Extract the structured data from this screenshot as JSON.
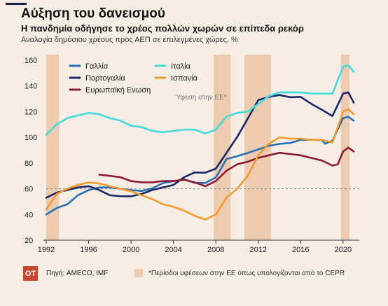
{
  "header": {
    "title": "Αύξηση του δανεισμού",
    "subtitle": "Η πανδημία οδήγησε το χρέος πολλών χωρών σε επίπεδα ρεκόρ",
    "units": "Αναλογία δημόσιου χρέους προς ΑΕΠ σε επιλεγμένες χώρες, %"
  },
  "footer": {
    "logo_text": "OT",
    "source": "Πηγή: AMECO, IMF",
    "recession_note": "*Περίοδοι υφέσεων στην ΕΕ όπως υπολογίζονται από το CEPR"
  },
  "colors": {
    "background": "#f6ede4",
    "recession": "#eccbb0",
    "logo": "#c64a2f",
    "reference_line": "#8a8a8a"
  },
  "chart_data": {
    "type": "line",
    "x_range": [
      1992,
      2021
    ],
    "ylim": [
      20,
      160
    ],
    "y_ticks": [
      20,
      40,
      60,
      80,
      100,
      120,
      140,
      160
    ],
    "x_ticks": [
      1992,
      1996,
      2000,
      2004,
      2008,
      2012,
      2016,
      2020
    ],
    "grid": false,
    "reference_line": 60,
    "recession_periods": [
      [
        1992.0,
        1993.2
      ],
      [
        2007.8,
        2009.4
      ],
      [
        2010.7,
        2013.2
      ],
      [
        2019.8,
        2020.6
      ]
    ],
    "annotation": "Ύφεση στην ΕΕ*",
    "legend_position": "top-left",
    "series": [
      {
        "name": "Γαλλία",
        "color": "#2c6fb5",
        "points": [
          [
            1992,
            40
          ],
          [
            1993,
            45
          ],
          [
            1994,
            48
          ],
          [
            1995,
            55
          ],
          [
            1996,
            59
          ],
          [
            1997,
            61
          ],
          [
            1998,
            61
          ],
          [
            1999,
            60
          ],
          [
            2000,
            58.9
          ],
          [
            2001,
            58.3
          ],
          [
            2002,
            60.3
          ],
          [
            2003,
            64.4
          ],
          [
            2004,
            65.9
          ],
          [
            2005,
            67.4
          ],
          [
            2006,
            64.6
          ],
          [
            2007,
            64.5
          ],
          [
            2008,
            68.8
          ],
          [
            2009,
            83
          ],
          [
            2010,
            85.3
          ],
          [
            2011,
            87.8
          ],
          [
            2012,
            90.6
          ],
          [
            2013,
            93.4
          ],
          [
            2014,
            94.9
          ],
          [
            2015,
            95.6
          ],
          [
            2016,
            98
          ],
          [
            2017,
            98.1
          ],
          [
            2018,
            97.8
          ],
          [
            2018.3,
            95
          ],
          [
            2019,
            97.4
          ],
          [
            2020,
            115
          ],
          [
            2020.5,
            116
          ],
          [
            2021,
            113
          ]
        ]
      },
      {
        "name": "Πορτογαλία",
        "color": "#1b2869",
        "points": [
          [
            1992,
            53
          ],
          [
            1993,
            57
          ],
          [
            1994,
            59
          ],
          [
            1995,
            61
          ],
          [
            1996,
            62
          ],
          [
            1997,
            59
          ],
          [
            1998,
            55
          ],
          [
            1999,
            54.2
          ],
          [
            2000,
            54.1
          ],
          [
            2001,
            56
          ],
          [
            2002,
            59
          ],
          [
            2003,
            61
          ],
          [
            2004,
            63
          ],
          [
            2005,
            69
          ],
          [
            2006,
            72.7
          ],
          [
            2007,
            72.5
          ],
          [
            2008,
            75.6
          ],
          [
            2009,
            87.8
          ],
          [
            2010,
            100.2
          ],
          [
            2011,
            114.4
          ],
          [
            2012,
            129
          ],
          [
            2013,
            131.4
          ],
          [
            2014,
            132.9
          ],
          [
            2015,
            131.2
          ],
          [
            2016,
            131.5
          ],
          [
            2017,
            126.1
          ],
          [
            2018,
            121.5
          ],
          [
            2019,
            116.6
          ],
          [
            2020,
            134
          ],
          [
            2020.5,
            135
          ],
          [
            2021,
            127
          ]
        ]
      },
      {
        "name": "Ευρωπαϊκή Ενωση",
        "color": "#8e1b33",
        "points": [
          [
            1997,
            71
          ],
          [
            1998,
            70
          ],
          [
            1999,
            69
          ],
          [
            2000,
            66
          ],
          [
            2001,
            65
          ],
          [
            2002,
            65
          ],
          [
            2003,
            66
          ],
          [
            2004,
            66
          ],
          [
            2005,
            67
          ],
          [
            2006,
            65
          ],
          [
            2007,
            62
          ],
          [
            2008,
            66
          ],
          [
            2009,
            74
          ],
          [
            2010,
            79
          ],
          [
            2011,
            81
          ],
          [
            2012,
            84
          ],
          [
            2013,
            86
          ],
          [
            2014,
            88
          ],
          [
            2015,
            87
          ],
          [
            2016,
            86
          ],
          [
            2017,
            84
          ],
          [
            2018,
            82
          ],
          [
            2019,
            78
          ],
          [
            2019.5,
            79
          ],
          [
            2020,
            89
          ],
          [
            2020.5,
            92
          ],
          [
            2021,
            89
          ]
        ]
      },
      {
        "name": "Ιταλία",
        "color": "#45d9d9",
        "points": [
          [
            1992,
            102
          ],
          [
            1993,
            110
          ],
          [
            1994,
            115
          ],
          [
            1995,
            117
          ],
          [
            1996,
            119
          ],
          [
            1997,
            118
          ],
          [
            1998,
            115
          ],
          [
            1999,
            113
          ],
          [
            2000,
            109
          ],
          [
            2001,
            108
          ],
          [
            2002,
            105
          ],
          [
            2003,
            104
          ],
          [
            2004,
            105
          ],
          [
            2005,
            106
          ],
          [
            2006,
            106
          ],
          [
            2007,
            103
          ],
          [
            2008,
            106
          ],
          [
            2009,
            116
          ],
          [
            2010,
            119
          ],
          [
            2011,
            120
          ],
          [
            2012,
            126
          ],
          [
            2013,
            132
          ],
          [
            2014,
            135
          ],
          [
            2015,
            135
          ],
          [
            2016,
            135
          ],
          [
            2017,
            134
          ],
          [
            2018,
            134
          ],
          [
            2019,
            134
          ],
          [
            2020,
            155
          ],
          [
            2020.5,
            156
          ],
          [
            2021,
            151
          ]
        ]
      },
      {
        "name": "Ισπανία",
        "color": "#f19a2e",
        "points": [
          [
            1992,
            44
          ],
          [
            1993,
            56
          ],
          [
            1994,
            60
          ],
          [
            1995,
            63
          ],
          [
            1996,
            65
          ],
          [
            1997,
            64
          ],
          [
            1998,
            62
          ],
          [
            1999,
            60
          ],
          [
            2000,
            58
          ],
          [
            2001,
            55
          ],
          [
            2002,
            52
          ],
          [
            2003,
            48
          ],
          [
            2004,
            46
          ],
          [
            2005,
            43
          ],
          [
            2006,
            39
          ],
          [
            2007,
            36
          ],
          [
            2008,
            40
          ],
          [
            2009,
            53
          ],
          [
            2010,
            60
          ],
          [
            2011,
            70
          ],
          [
            2012,
            86
          ],
          [
            2013,
            95
          ],
          [
            2014,
            100
          ],
          [
            2015,
            99
          ],
          [
            2016,
            99
          ],
          [
            2017,
            98
          ],
          [
            2018,
            98
          ],
          [
            2019,
            96
          ],
          [
            2020,
            120
          ],
          [
            2020.5,
            122
          ],
          [
            2021,
            118
          ]
        ]
      }
    ]
  }
}
